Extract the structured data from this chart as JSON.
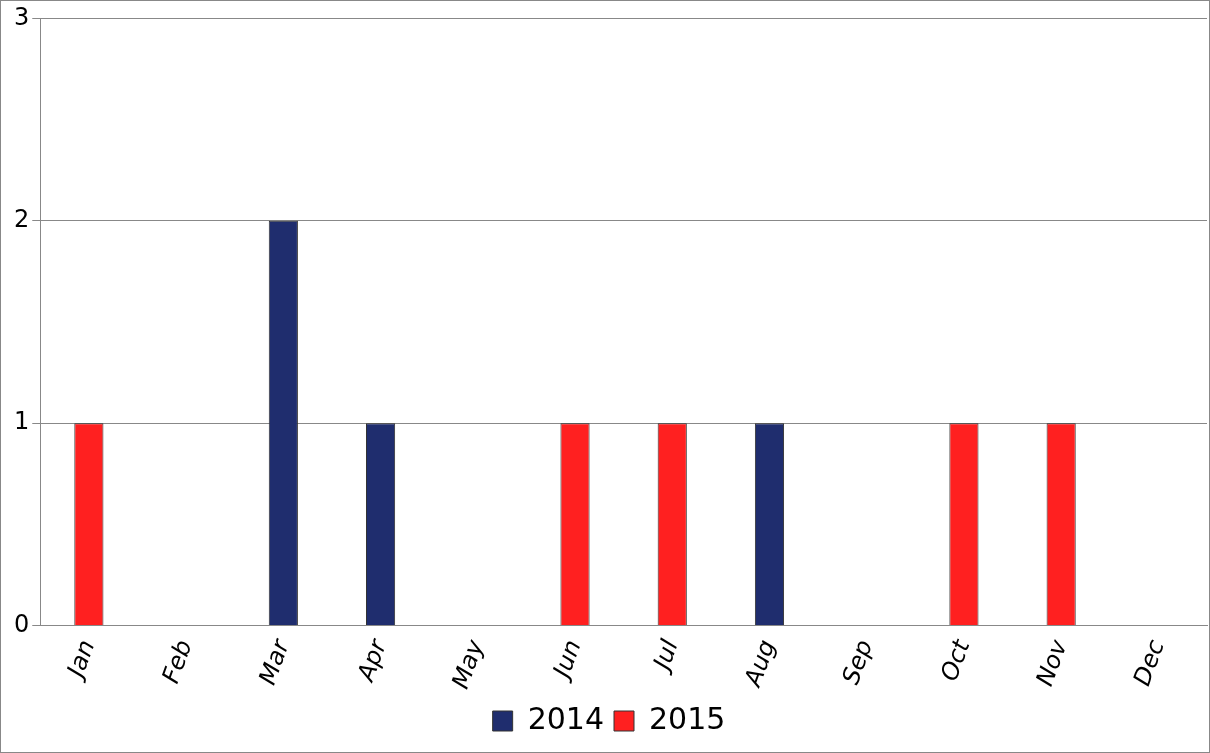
{
  "chart_data": {
    "type": "bar",
    "stacked": true,
    "categories": [
      "Jan",
      "Feb",
      "Mar",
      "Apr",
      "May",
      "Jun",
      "Jul",
      "Aug",
      "Sep",
      "Oct",
      "Nov",
      "Dec"
    ],
    "series": [
      {
        "name": "2014",
        "color": "#1f2d6e",
        "values": [
          null,
          null,
          2,
          1,
          null,
          null,
          null,
          1,
          null,
          null,
          null,
          null
        ]
      },
      {
        "name": "2015",
        "color": "#ff2020",
        "values": [
          1,
          null,
          null,
          null,
          null,
          1,
          1,
          null,
          null,
          1,
          1,
          null
        ]
      }
    ],
    "ylim": [
      0,
      3
    ],
    "yticks": [
      0,
      1,
      2,
      3
    ],
    "grid": "y",
    "legend": "bottom"
  }
}
